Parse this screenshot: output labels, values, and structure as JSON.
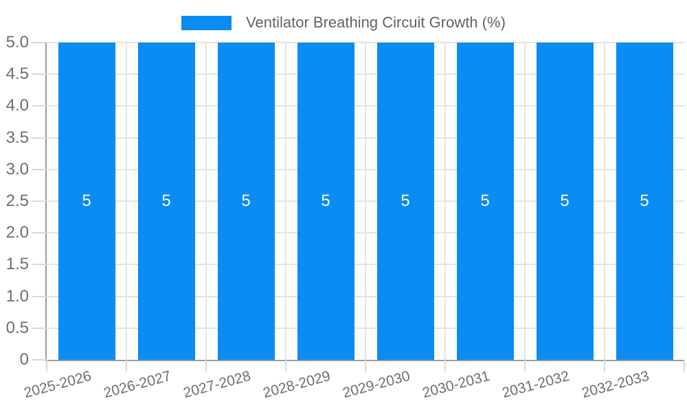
{
  "legend": {
    "label": "Ventilator Breathing Circuit Growth (%)"
  },
  "chart_data": {
    "type": "bar",
    "title": "Ventilator Breathing Circuit Growth (%)",
    "categories": [
      "2025-2026",
      "2026-2027",
      "2027-2028",
      "2028-2029",
      "2029-2030",
      "2030-2031",
      "2031-2032",
      "2032-2033"
    ],
    "values": [
      5,
      5,
      5,
      5,
      5,
      5,
      5,
      5
    ],
    "bar_value_labels": [
      "5",
      "5",
      "5",
      "5",
      "5",
      "5",
      "5",
      "5"
    ],
    "xlabel": "",
    "ylabel": "",
    "ylim": [
      0,
      5
    ],
    "ytick_step": 0.5,
    "ytick_labels": [
      "0",
      "0.5",
      "1.0",
      "1.5",
      "2.0",
      "2.5",
      "3.0",
      "3.5",
      "4.0",
      "4.5",
      "5.0"
    ],
    "grid": "on",
    "legend_position": "top-center",
    "x_label_rotation_deg": -15,
    "colors": {
      "bar": "#0a8cf2",
      "bar_value_text": "#ffffff",
      "axis_line": "#9b9b9b",
      "gridline": "#e4e4e4",
      "tick_mark": "#d9d9d9",
      "tick_text": "#6e6e6e",
      "legend_text": "#5f6368",
      "background": "#ffffff"
    }
  }
}
